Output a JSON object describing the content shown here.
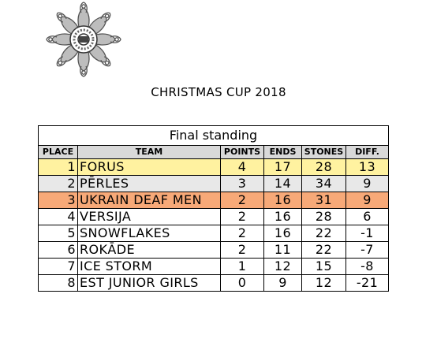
{
  "page": {
    "title": "CHRISTMAS CUP 2018"
  },
  "table": {
    "caption": "Final standing",
    "headers": [
      "PLACE",
      "TEAM",
      "POINTS",
      "ENDS",
      "STONES",
      "DIFF."
    ],
    "rows": [
      {
        "place": "1",
        "team": "FORUS",
        "points": "4",
        "ends": "17",
        "stones": "28",
        "diff": "13",
        "highlight": "#fff2a0"
      },
      {
        "place": "2",
        "team": "PĒRLES",
        "points": "3",
        "ends": "14",
        "stones": "34",
        "diff": "9",
        "highlight": "#e8e8e8"
      },
      {
        "place": "3",
        "team": "UKRAIN DEAF MEN",
        "points": "2",
        "ends": "16",
        "stones": "31",
        "diff": "9",
        "highlight": "#f7a978"
      },
      {
        "place": "4",
        "team": "VERSIJA",
        "points": "2",
        "ends": "16",
        "stones": "28",
        "diff": "6",
        "highlight": "#ffffff"
      },
      {
        "place": "5",
        "team": "SNOWFLAKES",
        "points": "2",
        "ends": "16",
        "stones": "22",
        "diff": "-1",
        "highlight": "#ffffff"
      },
      {
        "place": "6",
        "team": "ROKĀDE",
        "points": "2",
        "ends": "11",
        "stones": "22",
        "diff": "-7",
        "highlight": "#ffffff"
      },
      {
        "place": "7",
        "team": "ICE STORM",
        "points": "1",
        "ends": "12",
        "stones": "15",
        "diff": "-8",
        "highlight": "#ffffff"
      },
      {
        "place": "8",
        "team": "EST JUNIOR GIRLS",
        "points": "0",
        "ends": "9",
        "stones": "12",
        "diff": "-21",
        "highlight": "#ffffff"
      }
    ]
  }
}
